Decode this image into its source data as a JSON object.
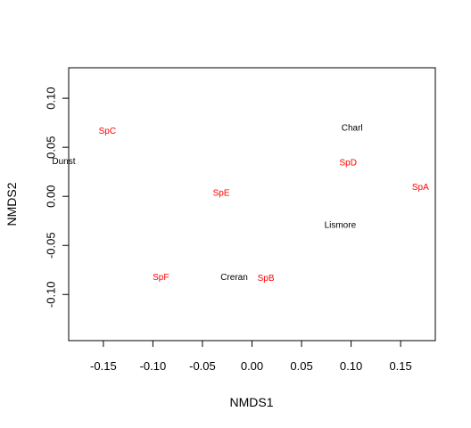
{
  "chart_data": {
    "type": "scatter",
    "title": "",
    "xlabel": "NMDS1",
    "ylabel": "NMDS2",
    "xlim": [
      -0.185,
      0.185
    ],
    "ylim": [
      -0.147,
      0.131
    ],
    "xticks": [
      -0.15,
      -0.1,
      -0.05,
      0.0,
      0.05,
      0.1,
      0.15
    ],
    "xtick_labels": [
      "-0.15",
      "-0.10",
      "-0.05",
      "0.00",
      "0.05",
      "0.10",
      "0.15"
    ],
    "yticks": [
      -0.1,
      -0.05,
      0.0,
      0.05,
      0.1
    ],
    "ytick_labels": [
      "-0.10",
      "-0.05",
      "0.00",
      "0.05",
      "0.10"
    ],
    "grid": false,
    "series": [
      {
        "color": "#000000",
        "points": [
          {
            "label": "Dunst",
            "x": -0.19,
            "y": 0.035
          },
          {
            "label": "Charl",
            "x": 0.101,
            "y": 0.069
          },
          {
            "label": "Lismore",
            "x": 0.089,
            "y": -0.03
          },
          {
            "label": "Creran",
            "x": -0.018,
            "y": -0.083
          }
        ]
      },
      {
        "color": "#ff0000",
        "points": [
          {
            "label": "SpC",
            "x": -0.146,
            "y": 0.066
          },
          {
            "label": "SpD",
            "x": 0.097,
            "y": 0.034
          },
          {
            "label": "SpA",
            "x": 0.17,
            "y": 0.009
          },
          {
            "label": "SpE",
            "x": -0.031,
            "y": 0.003
          },
          {
            "label": "SpF",
            "x": -0.092,
            "y": -0.083
          },
          {
            "label": "SpB",
            "x": 0.014,
            "y": -0.084
          }
        ]
      }
    ]
  }
}
